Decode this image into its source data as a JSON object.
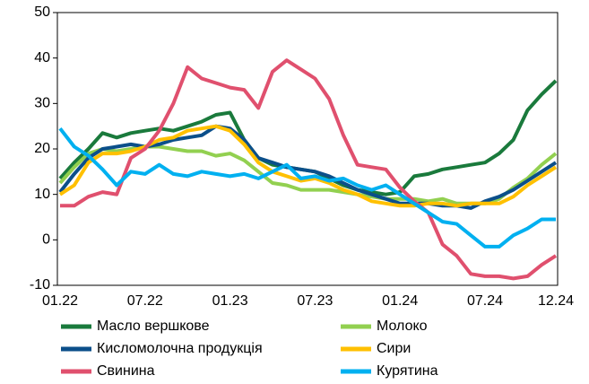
{
  "chart_data": {
    "type": "line",
    "categories": [
      "01.22",
      null,
      null,
      null,
      null,
      null,
      "07.22",
      null,
      null,
      null,
      null,
      null,
      "01.23",
      null,
      null,
      null,
      null,
      null,
      "07.23",
      null,
      null,
      null,
      null,
      null,
      "01.24",
      null,
      null,
      null,
      null,
      null,
      "07.24",
      null,
      null,
      null,
      null,
      "12.24"
    ],
    "ylim": [
      -10,
      50
    ],
    "yticks": [
      -10,
      0,
      10,
      20,
      30,
      40,
      50
    ],
    "series": [
      {
        "name": "Масло вершкове",
        "color": "#1a7a3c",
        "values": [
          13.5,
          17,
          20,
          23.5,
          22.5,
          23.5,
          24,
          24.5,
          24,
          25,
          26,
          27.5,
          28,
          22,
          18,
          16.5,
          16,
          15.5,
          15,
          13.5,
          12,
          11,
          10.5,
          10,
          10.5,
          14,
          14.5,
          15.5,
          16,
          16.5,
          17,
          19,
          22,
          28.5,
          32,
          35
        ]
      },
      {
        "name": "Молоко",
        "color": "#92d050",
        "values": [
          12.5,
          16,
          19,
          20,
          19.5,
          20,
          20.5,
          20.5,
          20,
          19.5,
          19.5,
          18.5,
          19,
          17.5,
          15,
          12.5,
          12,
          11,
          11,
          11,
          10.5,
          10,
          9.5,
          9,
          9,
          9,
          8.5,
          9,
          8,
          8,
          8,
          9,
          11.5,
          13.5,
          16.5,
          19
        ]
      },
      {
        "name": "Кисломолочна продукція",
        "color": "#0b4f8a",
        "values": [
          10.5,
          14.5,
          18,
          20,
          20.5,
          21,
          20.5,
          21,
          22,
          22.5,
          23,
          25,
          24.5,
          22,
          18,
          17,
          16,
          15.5,
          15,
          14,
          12.5,
          11,
          10,
          9,
          8,
          8,
          8,
          7.5,
          7.5,
          7,
          8.5,
          9.5,
          11,
          13,
          15,
          17
        ]
      },
      {
        "name": "Сири",
        "color": "#ffc000",
        "values": [
          10,
          12,
          17,
          19,
          19,
          19.5,
          20.5,
          22,
          22.5,
          24,
          24.5,
          25,
          24,
          21,
          17,
          15,
          14,
          13,
          13.5,
          12.5,
          11,
          10,
          8.5,
          8,
          7.5,
          7.5,
          8,
          8,
          7.5,
          8,
          8,
          8,
          9.5,
          12,
          14,
          16
        ]
      },
      {
        "name": "Свинина",
        "color": "#e0506e",
        "values": [
          7.5,
          7.5,
          9.5,
          10.5,
          10,
          18,
          20,
          24,
          30,
          38,
          35.5,
          34.5,
          33.5,
          33,
          29,
          37,
          39.5,
          37.5,
          35.5,
          31,
          23,
          16.5,
          16,
          15.5,
          11.5,
          8.5,
          6,
          -1,
          -3.5,
          -7.5,
          -8,
          -8,
          -8.5,
          -8,
          -5.5,
          -3.5
        ]
      },
      {
        "name": "Курятина",
        "color": "#00b0f0",
        "values": [
          24.5,
          20.5,
          18.5,
          15.5,
          12,
          15,
          14.5,
          16.5,
          14.5,
          14,
          15,
          14.5,
          14,
          14.5,
          13.5,
          15,
          16.5,
          13.5,
          14,
          13,
          13.5,
          12,
          11,
          12,
          10,
          8,
          6,
          4,
          3.5,
          1,
          -1.5,
          -1.5,
          1,
          2.5,
          4.5,
          4.5
        ]
      }
    ]
  }
}
